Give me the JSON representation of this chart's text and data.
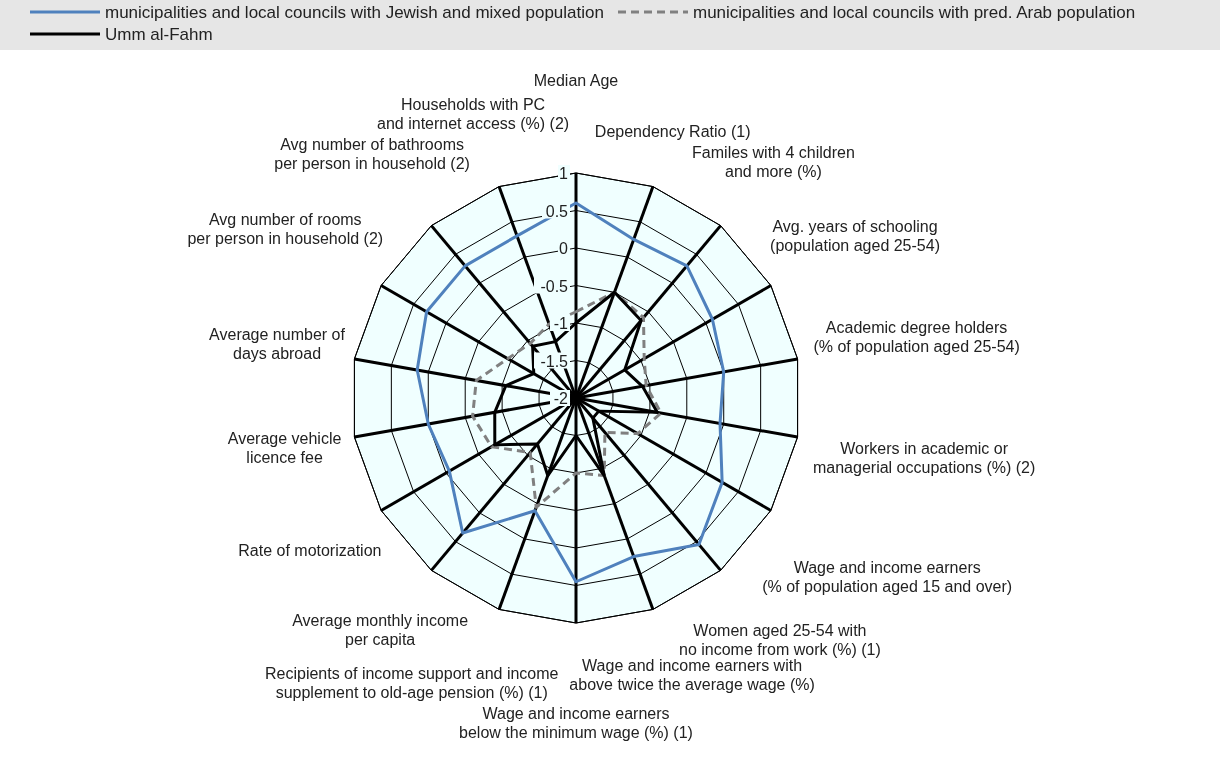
{
  "chart_data": {
    "type": "radar",
    "categories": [
      "Median Age",
      "Dependency Ratio (1)",
      "Familes with 4 children\nand more (%)",
      "Avg. years of schooling\n(population aged 25-54)",
      "Academic degree holders\n(% of population aged 25-54)",
      "Workers in academic or\nmanagerial occupations (%) (2)",
      "Wage and income earners\n(% of population aged 15 and over)",
      "Women aged 25-54 with\nno income from work (%) (1)",
      "Wage and income earners with\nabove twice the average wage (%)",
      "Wage and income earners\nbelow the minimum wage (%) (1)",
      "Recipients of income support and income\nsupplement to old-age pension (%) (1)",
      "Average monthly income\nper capita",
      "Rate of motorization",
      "Average vehicle\nlicence fee",
      "Average number of\ndays abroad",
      "Avg number of rooms\nper person in household (2)",
      "Avg number of bathrooms\nper person in household (2)",
      "Households with PC\nand internet access (%) (2)"
    ],
    "series": [
      {
        "name": "municipalities and local councils with Jewish and mixed population",
        "color": "#4f81bd",
        "line_style": "solid",
        "values": [
          0.6,
          0.25,
          0.3,
          0.1,
          0,
          -0.05,
          0.25,
          0.55,
          0.25,
          0.45,
          -0.4,
          0.35,
          -0.05,
          0,
          0.15,
          0.3,
          0.3,
          0.3
        ]
      },
      {
        "name": "municipalities and local councils with pred. Arab population",
        "color": "#808080",
        "line_style": "dashed",
        "values": [
          -0.85,
          -0.5,
          -0.6,
          -0.95,
          -1.05,
          -0.85,
          -1.05,
          -1.4,
          -0.9,
          -1,
          -0.45,
          -1.05,
          -0.7,
          -0.6,
          -0.65,
          -0.95,
          -1.05,
          -0.95
        ]
      },
      {
        "name": "Umm al-Fahm",
        "color": "#000000",
        "line_style": "solid",
        "values": [
          -1,
          -0.5,
          -0.65,
          -1.25,
          -1.1,
          -0.9,
          -1.65,
          -1.65,
          -0.9,
          -1.5,
          -0.9,
          -1.2,
          -0.75,
          -0.9,
          -1.05,
          -1.35,
          -1.1,
          -1.2
        ]
      }
    ],
    "ylim": [
      -2,
      1
    ],
    "yticks": [
      -2,
      -1.5,
      -1,
      -0.5,
      0,
      0.5,
      1
    ],
    "grid": true,
    "legend": "top",
    "marker": "none"
  }
}
